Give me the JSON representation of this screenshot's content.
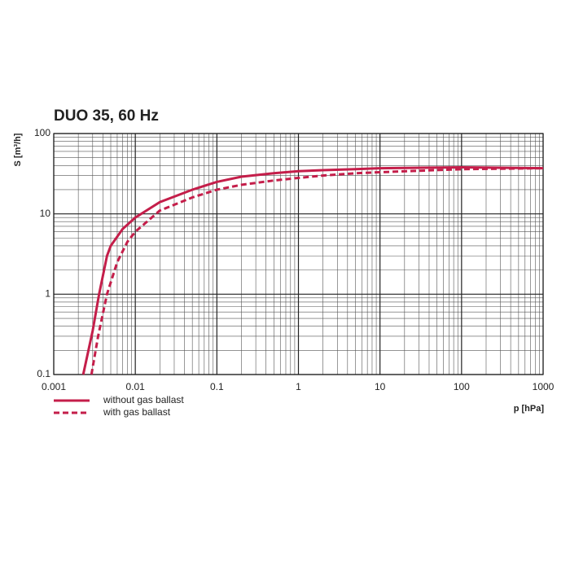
{
  "chart_data": {
    "type": "line",
    "title": "DUO 35, 60 Hz",
    "y_label": "S [m³/h]",
    "x_label": "p [hPa]",
    "x_log": true,
    "y_log": true,
    "grid": true,
    "minor_grid": true,
    "xlim": [
      0.001,
      1000
    ],
    "xticks": [
      0.001,
      0.01,
      0.1,
      1,
      10,
      100,
      1000
    ],
    "ylim": [
      0.1,
      100
    ],
    "yticks": [
      0.1,
      1,
      10,
      100
    ],
    "legend": "bottom-left",
    "series": [
      {
        "name": "without gas ballast",
        "color": "#c41e4a",
        "line_style": "solid",
        "x": [
          0.0023,
          0.003,
          0.0036,
          0.0045,
          0.005,
          0.007,
          0.01,
          0.02,
          0.05,
          0.1,
          0.2,
          0.5,
          1,
          2,
          5,
          10,
          100,
          1000
        ],
        "values": [
          0.1,
          0.35,
          1,
          3,
          4,
          6.5,
          9,
          14,
          20,
          25,
          29,
          32,
          34,
          35,
          36,
          37,
          38,
          37
        ]
      },
      {
        "name": "with gas ballast",
        "color": "#c41e4a",
        "line_style": "dashed",
        "x": [
          0.0029,
          0.0035,
          0.0045,
          0.006,
          0.008,
          0.01,
          0.02,
          0.05,
          0.1,
          0.2,
          0.5,
          1,
          2,
          5,
          10,
          100,
          1000
        ],
        "values": [
          0.1,
          0.3,
          1,
          2.5,
          4.5,
          6,
          11,
          16,
          20,
          23,
          26,
          28,
          30,
          32,
          33,
          36,
          37
        ]
      }
    ]
  }
}
